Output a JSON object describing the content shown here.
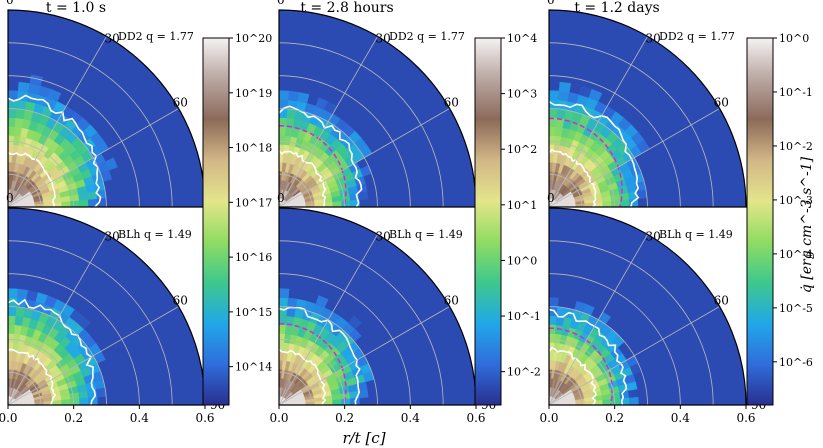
{
  "chart_data": {
    "type": "heatmap",
    "column_titles": [
      "t = 1.0 s",
      "t = 2.8 hours",
      "t = 1.2 days"
    ],
    "panels": [
      {
        "model": "DD2",
        "q_label": "DD2 q = 1.77",
        "column": 0,
        "row": 0
      },
      {
        "model": "DD2",
        "q_label": "DD2 q = 1.77",
        "column": 1,
        "row": 0
      },
      {
        "model": "DD2",
        "q_label": "DD2 q = 1.77",
        "column": 2,
        "row": 0
      },
      {
        "model": "BLh",
        "q_label": "BLh q = 1.49",
        "column": 0,
        "row": 1
      },
      {
        "model": "BLh",
        "q_label": "BLh q = 1.49",
        "column": 1,
        "row": 1
      },
      {
        "model": "BLh",
        "q_label": "BLh q = 1.49",
        "column": 2,
        "row": 1
      }
    ],
    "angle_labels": [
      "0",
      "30",
      "60",
      "90"
    ],
    "x_ticks": [
      "0.0",
      "0.2",
      "0.4",
      "0.6"
    ],
    "xlabel": "r/t [c]",
    "x_range": [
      0,
      0.6
    ],
    "colorbars": [
      {
        "ticks": [
          "10^14",
          "10^15",
          "10^16",
          "10^17",
          "10^18",
          "10^19",
          "10^20"
        ],
        "log_min": 13.3,
        "log_max": 20
      },
      {
        "ticks": [
          "10^-2",
          "10^-1",
          "10^0",
          "10^1",
          "10^2",
          "10^3",
          "10^4"
        ],
        "log_min": -2.6,
        "log_max": 4
      },
      {
        "ticks": [
          "10^-6",
          "10^-5",
          "10^-4",
          "10^-3",
          "10^-2",
          "10^-1",
          "10^0"
        ],
        "log_min": -6.8,
        "log_max": 0
      }
    ],
    "colorbar_label": "q̇ [erg cm^-3 s^-1]",
    "colormap": [
      "#2a2f8f",
      "#2f6ddc",
      "#21a8e8",
      "#3ec88c",
      "#8fdc62",
      "#e4e58a",
      "#d2b787",
      "#8c6a5a",
      "#b9a7a2",
      "#f4f2f2"
    ]
  }
}
